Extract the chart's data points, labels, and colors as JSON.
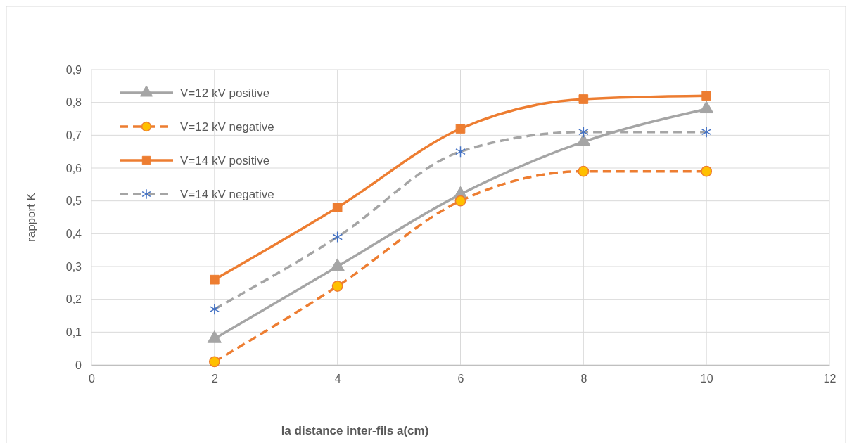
{
  "chart_data": {
    "type": "line",
    "xlabel": "la distance inter-fils  a(cm)",
    "ylabel": "rapport  K",
    "x": [
      2,
      4,
      6,
      8,
      10
    ],
    "series": [
      {
        "name": "V=12 kV positive",
        "color": "#a5a5a5",
        "values": [
          0.08,
          0.3,
          0.52,
          0.68,
          0.78
        ],
        "marker": "triangle",
        "line_style": "solid"
      },
      {
        "name": "V=12 kV negative",
        "color": "#ed7d31",
        "values": [
          0.01,
          0.24,
          0.5,
          0.59,
          0.59
        ],
        "marker": "circle",
        "line_style": "dashed"
      },
      {
        "name": "V=14 kV positive",
        "color": "#ed7d31",
        "values": [
          0.26,
          0.48,
          0.72,
          0.81,
          0.82
        ],
        "marker": "square",
        "line_style": "solid"
      },
      {
        "name": "V=14 kV negative",
        "color": "#a5a5a5",
        "values": [
          0.17,
          0.39,
          0.65,
          0.71,
          0.71
        ],
        "marker": "cross",
        "line_style": "dashed"
      }
    ],
    "xlim": [
      0,
      12
    ],
    "xticks": [
      0,
      2,
      4,
      6,
      8,
      10,
      12
    ],
    "ylim": [
      0,
      0.9
    ],
    "yticks": [
      0,
      {
        "value": 0.1,
        "label": "0,1"
      },
      {
        "value": 0.2,
        "label": "0,2"
      },
      {
        "value": 0.3,
        "label": "0,3"
      },
      {
        "value": 0.4,
        "label": "0,4"
      },
      {
        "value": 0.5,
        "label": "0,5"
      },
      {
        "value": 0.6,
        "label": "0,6"
      },
      {
        "value": 0.7,
        "label": "0,7"
      },
      {
        "value": 0.8,
        "label": "0,8"
      },
      {
        "value": 0.9,
        "label": "0,9"
      }
    ],
    "grid": true,
    "legend": "top left"
  }
}
